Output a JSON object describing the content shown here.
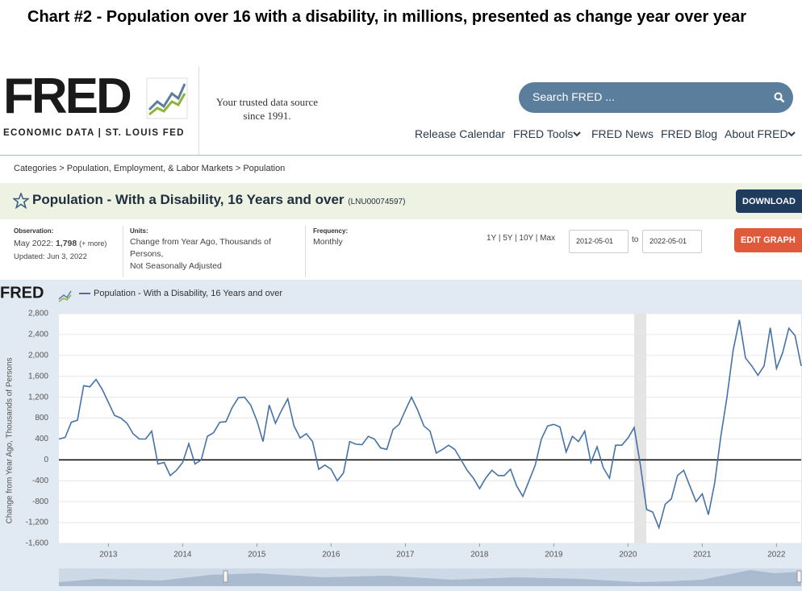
{
  "heading": "Chart #2 - Population over 16 with a disability, in millions, presented as change year over year",
  "header": {
    "logo": "FRED",
    "logo_sub": "ECONOMIC DATA  |  ST. LOUIS FED",
    "tagline": [
      "Your trusted data source",
      "since 1991."
    ],
    "search": "Search FRED ...",
    "nav": [
      "Release Calendar",
      "FRED Tools",
      "FRED News",
      "FRED Blog",
      "About FRED"
    ]
  },
  "breadcrumb": "Categories > Population, Employment, & Labor Markets > Population",
  "series_title": "Population - With a Disability, 16 Years and over",
  "series_id": "(LNU00074597)",
  "download": "DOWNLOAD",
  "observation": {
    "label": "Observation:",
    "date": "May 2022:",
    "value": "1,798",
    "more": "(+ more)",
    "updated": "Updated: Jun 3, 2022"
  },
  "units": {
    "label": "Units:",
    "lines": [
      "Change from Year Ago, Thousands of",
      "Persons,",
      "Not Seasonally Adjusted"
    ]
  },
  "frequency": {
    "label": "Frequency:",
    "value": "Monthly"
  },
  "ranges": "1Y | 5Y | 10Y | Max",
  "date_from": "2012-05-01",
  "date_sep": "to",
  "date_to": "2022-05-01",
  "edit_graph": "EDIT GRAPH",
  "chart_data": {
    "type": "line",
    "logo": "FRED",
    "ylabel": "Change from Year Ago, Thousands of Persons",
    "series": [
      {
        "name": "Population - With a Disability, 16 Years and over",
        "color": "#4572a7",
        "values": [
          400,
          430,
          720,
          760,
          1420,
          1400,
          1540,
          1350,
          1100,
          850,
          800,
          700,
          500,
          400,
          400,
          550,
          -80,
          -50,
          -300,
          -200,
          -50,
          310,
          -80,
          0,
          450,
          520,
          720,
          730,
          1000,
          1190,
          1200,
          1050,
          750,
          350,
          1050,
          700,
          950,
          1170,
          650,
          420,
          500,
          350,
          -180,
          -100,
          -180,
          -400,
          -250,
          350,
          300,
          290,
          450,
          400,
          230,
          200,
          580,
          680,
          950,
          1200,
          950,
          650,
          550,
          130,
          200,
          280,
          200,
          0,
          -200,
          -350,
          -550,
          -350,
          -200,
          -300,
          -300,
          -180,
          -500,
          -700,
          -400,
          -100,
          400,
          650,
          680,
          630,
          150,
          450,
          350,
          550,
          -50,
          250,
          -150,
          -350,
          280,
          280,
          420,
          620,
          -100,
          -950,
          -1000,
          -1300,
          -850,
          -750,
          -300,
          -200,
          -500,
          -800,
          -650,
          -1050,
          -450,
          450,
          1200,
          2100,
          2680,
          1950,
          1800,
          1620,
          1800,
          2530,
          1750,
          2050,
          2520,
          2380,
          1798
        ]
      }
    ],
    "xlim": [
      2012.333,
      2022.333
    ],
    "xticks": [
      2013,
      2014,
      2015,
      2016,
      2017,
      2018,
      2019,
      2020,
      2021,
      2022
    ],
    "ylim": [
      -1600,
      2800
    ],
    "yticks": [
      {
        "value": 2800,
        "label": "2,800"
      },
      {
        "value": 2400,
        "label": "2,400"
      },
      {
        "value": 2000,
        "label": "2,000"
      },
      {
        "value": 1600,
        "label": "1,600"
      },
      {
        "value": 1200,
        "label": "1,200"
      },
      800,
      400,
      0,
      -400,
      -800,
      {
        "value": -1200,
        "label": "-1,200"
      },
      {
        "value": -1600,
        "label": "-1,600"
      }
    ],
    "grid": true
  }
}
